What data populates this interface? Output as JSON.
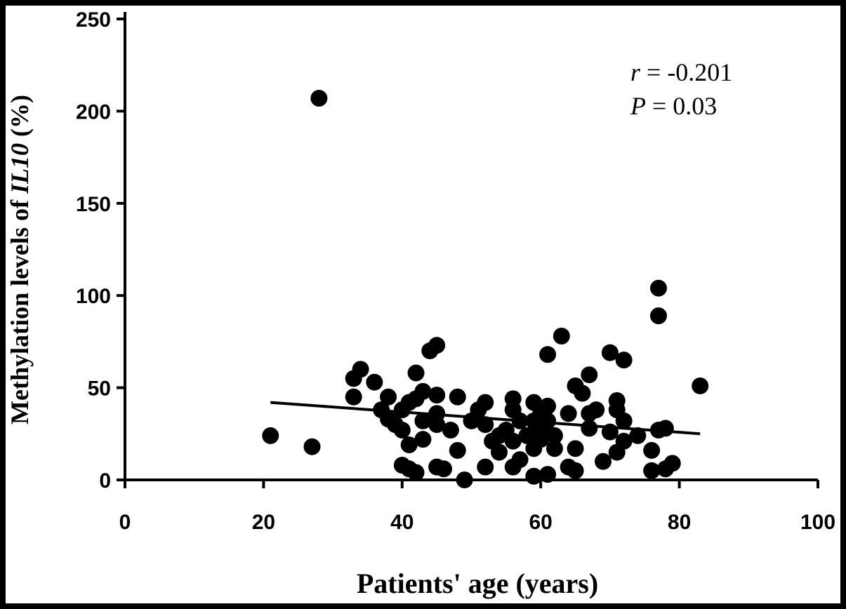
{
  "chart_data": {
    "type": "scatter",
    "ylabel_parts": [
      "Methylation levels of ",
      "IL10",
      " (%)"
    ],
    "xlabel": "Patients' age (years)",
    "annotation": {
      "r_symbol": "r",
      "r_text": " = -0.201",
      "p_symbol": "P",
      "p_text": " = 0.03"
    },
    "xlim": [
      0,
      100
    ],
    "xticks": [
      0,
      20,
      40,
      60,
      80,
      100
    ],
    "ylim": [
      0,
      250
    ],
    "yticks": [
      0,
      50,
      100,
      150,
      200,
      250
    ],
    "color": "#000000",
    "x": [
      21,
      27,
      28,
      33,
      33,
      34,
      36,
      37,
      38,
      38,
      39,
      40,
      41,
      40,
      41,
      40,
      41,
      42,
      42,
      42,
      43,
      43,
      43,
      44,
      45,
      45,
      45,
      45,
      45,
      46,
      47,
      48,
      48,
      49,
      50,
      51,
      52,
      52,
      52,
      53,
      54,
      54,
      55,
      56,
      56,
      56,
      56,
      57,
      57,
      58,
      59,
      59,
      59,
      59,
      60,
      60,
      60,
      61,
      61,
      61,
      61,
      62,
      62,
      63,
      64,
      64,
      65,
      65,
      65,
      66,
      67,
      67,
      67,
      68,
      69,
      70,
      70,
      71,
      71,
      71,
      72,
      72,
      72,
      74,
      76,
      76,
      77,
      77,
      77,
      78,
      78,
      79,
      83
    ],
    "y": [
      24,
      18,
      207,
      45,
      55,
      60,
      53,
      38,
      45,
      33,
      30,
      38,
      42,
      27,
      19,
      8,
      6,
      4,
      58,
      44,
      48,
      22,
      32,
      70,
      73,
      46,
      36,
      30,
      7,
      6,
      27,
      45,
      16,
      0,
      32,
      38,
      42,
      30,
      7,
      21,
      15,
      24,
      27,
      44,
      38,
      21,
      7,
      11,
      32,
      24,
      17,
      2,
      42,
      32,
      28,
      22,
      38,
      40,
      68,
      3,
      32,
      24,
      17,
      78,
      36,
      7,
      51,
      17,
      5,
      47,
      57,
      36,
      28,
      38,
      10,
      69,
      26,
      43,
      38,
      15,
      65,
      32,
      21,
      24,
      16,
      5,
      104,
      89,
      27,
      28,
      6,
      9,
      51
    ],
    "trendline": {
      "x": [
        21,
        83
      ],
      "y": [
        42,
        25
      ]
    }
  }
}
